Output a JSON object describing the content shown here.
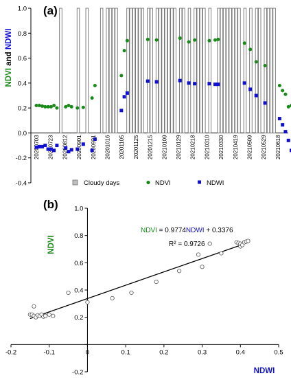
{
  "colors": {
    "ndvi": "#1a8a1a",
    "ndwi": "#1010d0",
    "cloud_fill": "#ffffff",
    "cloud_stroke": "#707070",
    "fit_line": "#000000"
  },
  "chart_data": [
    {
      "type": "bar+scatter time series",
      "panel_label": "(a)",
      "ylabel_parts": [
        {
          "text": "NDVI",
          "color_key": "ndvi"
        },
        {
          "text": " and ",
          "color_key": "black"
        },
        {
          "text": "NDWI",
          "color_key": "ndwi"
        }
      ],
      "ylim": [
        -0.4,
        1.0
      ],
      "yticks": [
        "1.0",
        "0.8",
        "0.6",
        "0.4",
        "0.2",
        "0.0",
        "-0.2",
        "-0.4"
      ],
      "n_slots": 86,
      "date_ticks": [
        {
          "label": "20200703",
          "slot": 1
        },
        {
          "label": "20200723",
          "slot": 5
        },
        {
          "label": "20200812",
          "slot": 9
        },
        {
          "label": "20200901",
          "slot": 13
        },
        {
          "label": "20200921",
          "slot": 17
        },
        {
          "label": "20201016",
          "slot": 22
        },
        {
          "label": "20201105",
          "slot": 26
        },
        {
          "label": "20201125",
          "slot": 30
        },
        {
          "label": "20201215",
          "slot": 34
        },
        {
          "label": "20210109",
          "slot": 39
        },
        {
          "label": "20210129",
          "slot": 43
        },
        {
          "label": "20210218",
          "slot": 47
        },
        {
          "label": "20210310",
          "slot": 51
        },
        {
          "label": "20210330",
          "slot": 55
        },
        {
          "label": "20210419",
          "slot": 59
        },
        {
          "label": "20210509",
          "slot": 63
        },
        {
          "label": "20210529",
          "slot": 67
        },
        {
          "label": "20210618",
          "slot": 71
        }
      ],
      "cloudy_slots": [
        9,
        15,
        18,
        23,
        25,
        26,
        27,
        28,
        32,
        33,
        34,
        35,
        36,
        37,
        39,
        40,
        42,
        43,
        44,
        45,
        46,
        47,
        48,
        50,
        51,
        53,
        55,
        56,
        57,
        58,
        60,
        63,
        64,
        65,
        66,
        67,
        68,
        69,
        70,
        72,
        74,
        76,
        77,
        79,
        80,
        81,
        82
      ],
      "cloudy_value": 1.0,
      "ndvi_points": [
        {
          "slot": 0,
          "value": 0.22
        },
        {
          "slot": 1,
          "value": 0.22
        },
        {
          "slot": 2,
          "value": 0.215
        },
        {
          "slot": 3,
          "value": 0.21
        },
        {
          "slot": 4,
          "value": 0.21
        },
        {
          "slot": 5,
          "value": 0.21
        },
        {
          "slot": 6,
          "value": 0.22
        },
        {
          "slot": 7,
          "value": 0.2
        },
        {
          "slot": 10,
          "value": 0.21
        },
        {
          "slot": 11,
          "value": 0.22
        },
        {
          "slot": 12,
          "value": 0.21
        },
        {
          "slot": 14,
          "value": 0.2
        },
        {
          "slot": 16,
          "value": 0.205
        },
        {
          "slot": 19,
          "value": 0.28
        },
        {
          "slot": 20,
          "value": 0.38
        },
        {
          "slot": 29,
          "value": 0.46
        },
        {
          "slot": 30,
          "value": 0.66
        },
        {
          "slot": 31,
          "value": 0.74
        },
        {
          "slot": 38,
          "value": 0.75
        },
        {
          "slot": 41,
          "value": 0.745
        },
        {
          "slot": 49,
          "value": 0.76
        },
        {
          "slot": 52,
          "value": 0.73
        },
        {
          "slot": 54,
          "value": 0.745
        },
        {
          "slot": 59,
          "value": 0.74
        },
        {
          "slot": 61,
          "value": 0.745
        },
        {
          "slot": 62,
          "value": 0.75
        },
        {
          "slot": 71,
          "value": 0.72
        },
        {
          "slot": 73,
          "value": 0.67
        },
        {
          "slot": 75,
          "value": 0.57
        },
        {
          "slot": 78,
          "value": 0.54
        },
        {
          "slot": 83,
          "value": 0.38
        },
        {
          "slot": 84,
          "value": 0.34
        },
        {
          "slot": 85,
          "value": 0.31
        },
        {
          "slot": 86,
          "value": 0.21
        },
        {
          "slot": 87,
          "value": 0.22
        }
      ],
      "ndwi_points": [
        {
          "slot": 0,
          "value": -0.115
        },
        {
          "slot": 1,
          "value": -0.11
        },
        {
          "slot": 2,
          "value": -0.11
        },
        {
          "slot": 3,
          "value": -0.1
        },
        {
          "slot": 4,
          "value": -0.13
        },
        {
          "slot": 5,
          "value": -0.13
        },
        {
          "slot": 6,
          "value": -0.14
        },
        {
          "slot": 7,
          "value": -0.1
        },
        {
          "slot": 10,
          "value": -0.12
        },
        {
          "slot": 11,
          "value": -0.15
        },
        {
          "slot": 12,
          "value": -0.135
        },
        {
          "slot": 14,
          "value": -0.13
        },
        {
          "slot": 16,
          "value": -0.09
        },
        {
          "slot": 19,
          "value": -0.14
        },
        {
          "slot": 20,
          "value": -0.05
        },
        {
          "slot": 29,
          "value": 0.18
        },
        {
          "slot": 30,
          "value": 0.29
        },
        {
          "slot": 31,
          "value": 0.32
        },
        {
          "slot": 38,
          "value": 0.415
        },
        {
          "slot": 41,
          "value": 0.41
        },
        {
          "slot": 49,
          "value": 0.42
        },
        {
          "slot": 52,
          "value": 0.4
        },
        {
          "slot": 54,
          "value": 0.395
        },
        {
          "slot": 59,
          "value": 0.395
        },
        {
          "slot": 61,
          "value": 0.39
        },
        {
          "slot": 62,
          "value": 0.39
        },
        {
          "slot": 71,
          "value": 0.4
        },
        {
          "slot": 73,
          "value": 0.35
        },
        {
          "slot": 75,
          "value": 0.3
        },
        {
          "slot": 78,
          "value": 0.24
        },
        {
          "slot": 83,
          "value": 0.115
        },
        {
          "slot": 84,
          "value": 0.065
        },
        {
          "slot": 85,
          "value": 0.01
        },
        {
          "slot": 86,
          "value": -0.06
        },
        {
          "slot": 87,
          "value": -0.14
        }
      ],
      "legend": [
        {
          "label": "Cloudy days",
          "marker": "bar"
        },
        {
          "label": "NDVI",
          "marker": "circle",
          "color_key": "ndvi"
        },
        {
          "label": "NDWI",
          "marker": "square",
          "color_key": "ndwi"
        }
      ],
      "legend_position": "bottom"
    },
    {
      "type": "scatter",
      "panel_label": "(b)",
      "xlabel": "NDWI",
      "ylabel": "NDVI",
      "xlim": [
        -0.2,
        0.5
      ],
      "ylim": [
        -0.2,
        1.0
      ],
      "xticks": [
        "-0.2",
        "-0.1",
        "0",
        "0.1",
        "0.2",
        "0.3",
        "0.4",
        "0.5"
      ],
      "yticks": [
        "1.0",
        "0.8",
        "0.6",
        "0.4",
        "0.2",
        "0",
        "-0.2"
      ],
      "equation_parts": [
        {
          "text": "NDVI",
          "color_key": "ndvi"
        },
        {
          "text": " = 0.9774",
          "color_key": "black"
        },
        {
          "text": "NDWI",
          "color_key": "ndwi"
        },
        {
          "text": " + 0.3376",
          "color_key": "black"
        }
      ],
      "r2_text": "R² = 0.9726",
      "fit": {
        "slope": 0.9774,
        "intercept": 0.3376,
        "x_range": [
          -0.15,
          0.42
        ]
      },
      "points": [
        {
          "x": -0.15,
          "y": 0.22
        },
        {
          "x": -0.145,
          "y": 0.22
        },
        {
          "x": -0.14,
          "y": 0.28
        },
        {
          "x": -0.14,
          "y": 0.21
        },
        {
          "x": -0.135,
          "y": 0.2
        },
        {
          "x": -0.13,
          "y": 0.215
        },
        {
          "x": -0.125,
          "y": 0.21
        },
        {
          "x": -0.12,
          "y": 0.22
        },
        {
          "x": -0.115,
          "y": 0.205
        },
        {
          "x": -0.11,
          "y": 0.21
        },
        {
          "x": -0.1,
          "y": 0.22
        },
        {
          "x": -0.09,
          "y": 0.21
        },
        {
          "x": -0.05,
          "y": 0.38
        },
        {
          "x": 0.0,
          "y": 0.31
        },
        {
          "x": 0.065,
          "y": 0.34
        },
        {
          "x": 0.115,
          "y": 0.38
        },
        {
          "x": 0.18,
          "y": 0.46
        },
        {
          "x": 0.24,
          "y": 0.54
        },
        {
          "x": 0.29,
          "y": 0.66
        },
        {
          "x": 0.3,
          "y": 0.57
        },
        {
          "x": 0.32,
          "y": 0.74
        },
        {
          "x": 0.35,
          "y": 0.67
        },
        {
          "x": 0.39,
          "y": 0.75
        },
        {
          "x": 0.395,
          "y": 0.745
        },
        {
          "x": 0.4,
          "y": 0.72
        },
        {
          "x": 0.4,
          "y": 0.74
        },
        {
          "x": 0.405,
          "y": 0.73
        },
        {
          "x": 0.41,
          "y": 0.75
        },
        {
          "x": 0.415,
          "y": 0.755
        },
        {
          "x": 0.42,
          "y": 0.76
        }
      ]
    }
  ]
}
